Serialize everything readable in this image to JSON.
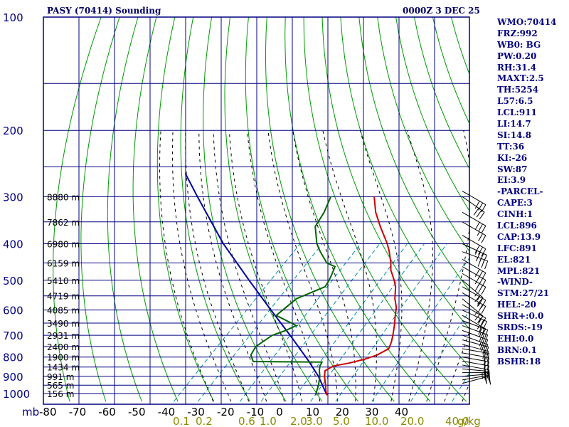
{
  "header": {
    "title": "PASY (70414) Sounding",
    "time": "0000Z  3 DEC 25"
  },
  "stats": [
    "WMO:70414",
    "FRZ:992",
    "WB0: BG",
    "PW:0.20",
    "RH:31.4",
    "MAXT:2.5",
    "TH:5254",
    "L57:6.5",
    "LCL:911",
    "LI:14.7",
    "SI:14.8",
    "TT:36",
    "KI:-26",
    "SW:87",
    "EI:3.9",
    "-PARCEL-",
    "CAPE:3",
    "CINH:1",
    "LCL:896",
    "CAP:13.9",
    "LFC:891",
    "EL:821",
    "MPL:821",
    "-WIND-",
    "STM:27/21",
    "HEL:-20",
    "SHR+:0.0",
    "SRDS:-19",
    "EHI:0.0",
    "BRN:0.1",
    "BSHR:18"
  ],
  "colors": {
    "frame": "#000080",
    "dry_adiabat": "#009900",
    "moist_adiabat": "#000000",
    "mixing_ratio": "#008ba0",
    "temperature": "#cc0000",
    "dewpoint": "#006400",
    "parcel": "#0000a0",
    "wind": "#000000",
    "mixing_label": "#8a8a00"
  },
  "chart_data": {
    "type": "skew-t",
    "title": "PASY (70414) Sounding",
    "xlabel": "",
    "ylabel": "mb",
    "pressure_range": [
      1000,
      100
    ],
    "pressure_ticks": [
      100,
      200,
      300,
      400,
      500,
      600,
      700,
      800,
      900,
      1000
    ],
    "temp_range": [
      -80,
      40
    ],
    "temp_ticks": [
      -80,
      -70,
      -60,
      -50,
      -40,
      -30,
      -20,
      -10,
      0,
      10,
      20,
      30,
      40
    ],
    "height_labels": [
      {
        "p": 300,
        "label": "8880 m"
      },
      {
        "p": 350,
        "label": "7862 m"
      },
      {
        "p": 400,
        "label": "6980 m"
      },
      {
        "p": 450,
        "label": "6159 m"
      },
      {
        "p": 500,
        "label": "5410 m"
      },
      {
        "p": 550,
        "label": "4719 m"
      },
      {
        "p": 600,
        "label": "4085 m"
      },
      {
        "p": 650,
        "label": "3490 m"
      },
      {
        "p": 700,
        "label": "2931 m"
      },
      {
        "p": 750,
        "label": "2400 m"
      },
      {
        "p": 800,
        "label": "1900 m"
      },
      {
        "p": 850,
        "label": "1434 m"
      },
      {
        "p": 900,
        "label": "991 m"
      },
      {
        "p": 950,
        "label": "565 m"
      },
      {
        "p": 1000,
        "label": "156 m"
      }
    ],
    "mixing_ratio_labels": [
      "0.1",
      "0.2",
      "0.6",
      "1.0",
      "2.0",
      "3.0",
      "5.0",
      "10.0",
      "20.0",
      "40.0",
      "g/kg"
    ],
    "mixing_ratios": [
      0.1,
      0.2,
      0.6,
      1.0,
      2.0,
      3.0,
      5.0,
      10.0,
      20.0,
      40.0
    ],
    "temperature": [
      {
        "p": 1010,
        "t": 0.2
      },
      {
        "p": 980,
        "t": -1.5
      },
      {
        "p": 950,
        "t": -3.0
      },
      {
        "p": 900,
        "t": -5.8
      },
      {
        "p": 870,
        "t": -7.2
      },
      {
        "p": 845,
        "t": -6.2
      },
      {
        "p": 830,
        "t": -2.6
      },
      {
        "p": 810,
        "t": 0.8
      },
      {
        "p": 790,
        "t": 3.0
      },
      {
        "p": 760,
        "t": 4.5
      },
      {
        "p": 730,
        "t": 3.4
      },
      {
        "p": 700,
        "t": 1.9
      },
      {
        "p": 660,
        "t": -0.4
      },
      {
        "p": 620,
        "t": -3.0
      },
      {
        "p": 590,
        "t": -5.0
      },
      {
        "p": 560,
        "t": -7.8
      },
      {
        "p": 520,
        "t": -11.0
      },
      {
        "p": 500,
        "t": -13.2
      },
      {
        "p": 470,
        "t": -17.0
      },
      {
        "p": 450,
        "t": -19.0
      },
      {
        "p": 420,
        "t": -22.6
      },
      {
        "p": 400,
        "t": -25.4
      },
      {
        "p": 360,
        "t": -32.2
      },
      {
        "p": 330,
        "t": -37.5
      },
      {
        "p": 300,
        "t": -42.3
      }
    ],
    "dewpoint": [
      {
        "p": 1010,
        "t": -3.0
      },
      {
        "p": 980,
        "t": -4.0
      },
      {
        "p": 950,
        "t": -5.0
      },
      {
        "p": 900,
        "t": -7.1
      },
      {
        "p": 870,
        "t": -8.8
      },
      {
        "p": 845,
        "t": -10.0
      },
      {
        "p": 825,
        "t": -10.5
      },
      {
        "p": 822,
        "t": -30.0
      },
      {
        "p": 790,
        "t": -32.5
      },
      {
        "p": 750,
        "t": -33.5
      },
      {
        "p": 700,
        "t": -32.0
      },
      {
        "p": 680,
        "t": -29.6
      },
      {
        "p": 660,
        "t": -28.0
      },
      {
        "p": 620,
        "t": -36.5
      },
      {
        "p": 590,
        "t": -36.0
      },
      {
        "p": 560,
        "t": -35.5
      },
      {
        "p": 520,
        "t": -30.8
      },
      {
        "p": 500,
        "t": -31.5
      },
      {
        "p": 480,
        "t": -32.5
      },
      {
        "p": 460,
        "t": -33.7
      },
      {
        "p": 450,
        "t": -37.0
      },
      {
        "p": 420,
        "t": -42.0
      },
      {
        "p": 400,
        "t": -45.2
      },
      {
        "p": 360,
        "t": -50.5
      },
      {
        "p": 330,
        "t": -52.0
      },
      {
        "p": 300,
        "t": -54.5
      }
    ],
    "parcel": [
      {
        "p": 1010,
        "t": 0.2
      },
      {
        "p": 900,
        "t": -7.5
      },
      {
        "p": 820,
        "t": -14.5
      },
      {
        "p": 700,
        "t": -27.0
      },
      {
        "p": 600,
        "t": -39.5
      },
      {
        "p": 500,
        "t": -54.0
      },
      {
        "p": 400,
        "t": -71.5
      },
      {
        "p": 300,
        "t": -92.0
      },
      {
        "p": 260,
        "t": -102.0
      }
    ],
    "wind_barbs": [
      {
        "p": 290,
        "dir": 300,
        "kt": 30
      },
      {
        "p": 300,
        "dir": 305,
        "kt": 30
      },
      {
        "p": 330,
        "dir": 300,
        "kt": 30
      },
      {
        "p": 350,
        "dir": 300,
        "kt": 25
      },
      {
        "p": 380,
        "dir": 300,
        "kt": 30
      },
      {
        "p": 400,
        "dir": 295,
        "kt": 35
      },
      {
        "p": 420,
        "dir": 290,
        "kt": 35
      },
      {
        "p": 440,
        "dir": 300,
        "kt": 30
      },
      {
        "p": 460,
        "dir": 300,
        "kt": 30
      },
      {
        "p": 480,
        "dir": 300,
        "kt": 30
      },
      {
        "p": 500,
        "dir": 310,
        "kt": 25
      },
      {
        "p": 520,
        "dir": 300,
        "kt": 25
      },
      {
        "p": 540,
        "dir": 300,
        "kt": 25
      },
      {
        "p": 560,
        "dir": 310,
        "kt": 25
      },
      {
        "p": 580,
        "dir": 300,
        "kt": 20
      },
      {
        "p": 600,
        "dir": 295,
        "kt": 25
      },
      {
        "p": 620,
        "dir": 300,
        "kt": 25
      },
      {
        "p": 640,
        "dir": 290,
        "kt": 25
      },
      {
        "p": 660,
        "dir": 290,
        "kt": 25
      },
      {
        "p": 680,
        "dir": 290,
        "kt": 25
      },
      {
        "p": 700,
        "dir": 290,
        "kt": 25
      },
      {
        "p": 720,
        "dir": 285,
        "kt": 25
      },
      {
        "p": 740,
        "dir": 285,
        "kt": 20
      },
      {
        "p": 760,
        "dir": 280,
        "kt": 20
      },
      {
        "p": 780,
        "dir": 280,
        "kt": 20
      },
      {
        "p": 800,
        "dir": 280,
        "kt": 20
      },
      {
        "p": 820,
        "dir": 280,
        "kt": 20
      },
      {
        "p": 840,
        "dir": 280,
        "kt": 20
      },
      {
        "p": 860,
        "dir": 275,
        "kt": 20
      },
      {
        "p": 880,
        "dir": 270,
        "kt": 25
      },
      {
        "p": 900,
        "dir": 265,
        "kt": 25
      },
      {
        "p": 920,
        "dir": 260,
        "kt": 20
      },
      {
        "p": 940,
        "dir": 255,
        "kt": 15
      }
    ]
  }
}
